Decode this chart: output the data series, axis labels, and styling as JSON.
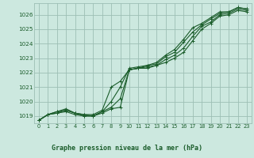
{
  "background_color": "#cce8df",
  "grid_color": "#9dbfb4",
  "line_color": "#1a5c2a",
  "title": "Graphe pression niveau de la mer (hPa)",
  "xlim": [
    -0.5,
    23.5
  ],
  "ylim": [
    1018.5,
    1026.8
  ],
  "xticks": [
    0,
    1,
    2,
    3,
    4,
    5,
    6,
    7,
    8,
    9,
    10,
    11,
    12,
    13,
    14,
    15,
    16,
    17,
    18,
    19,
    20,
    21,
    22,
    23
  ],
  "yticks": [
    1019,
    1020,
    1021,
    1022,
    1023,
    1024,
    1025,
    1026
  ],
  "series": [
    [
      1018.7,
      1019.1,
      1019.2,
      1019.3,
      1019.1,
      1019.0,
      1019.0,
      1019.2,
      1019.5,
      1019.6,
      1022.2,
      1022.3,
      1022.3,
      1022.5,
      1022.7,
      1023.0,
      1023.4,
      1024.2,
      1025.0,
      1025.4,
      1025.9,
      1026.0,
      1026.3,
      1026.2
    ],
    [
      1018.7,
      1019.1,
      1019.2,
      1019.4,
      1019.2,
      1019.0,
      1019.0,
      1019.3,
      1019.6,
      1020.2,
      1022.2,
      1022.3,
      1022.4,
      1022.5,
      1022.9,
      1023.2,
      1023.7,
      1024.5,
      1025.2,
      1025.5,
      1026.0,
      1026.1,
      1026.4,
      1026.3
    ],
    [
      1018.7,
      1019.1,
      1019.3,
      1019.4,
      1019.2,
      1019.1,
      1019.0,
      1019.3,
      1020.0,
      1021.0,
      1022.3,
      1022.4,
      1022.5,
      1022.6,
      1023.1,
      1023.4,
      1024.1,
      1024.8,
      1025.3,
      1025.7,
      1026.1,
      1026.2,
      1026.5,
      1026.4
    ],
    [
      1018.7,
      1019.1,
      1019.3,
      1019.5,
      1019.2,
      1019.1,
      1019.1,
      1019.4,
      1021.0,
      1021.4,
      1022.2,
      1022.3,
      1022.5,
      1022.7,
      1023.2,
      1023.6,
      1024.3,
      1025.1,
      1025.4,
      1025.8,
      1026.2,
      1026.2,
      1026.5,
      1026.4
    ]
  ]
}
